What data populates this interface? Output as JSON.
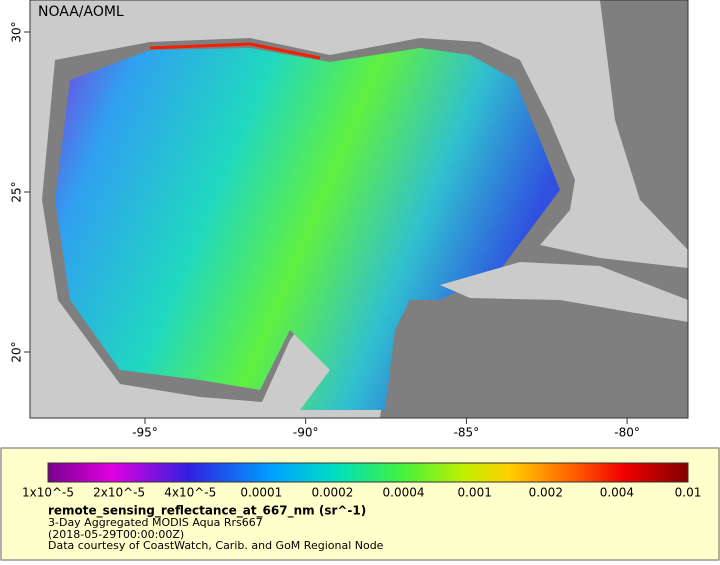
{
  "map": {
    "credit": "NOAA/AOML",
    "lat_ticks": [
      "30°",
      "25°",
      "20°"
    ],
    "lon_ticks": [
      "-95°",
      "-90°",
      "-85°",
      "-80°"
    ]
  },
  "legend": {
    "ticks": [
      "1x10^-5",
      "2x10^-5",
      "4x10^-5",
      "0.0001",
      "0.0002",
      "0.0004",
      "0.001",
      "0.002",
      "0.004",
      "0.01"
    ],
    "title": "remote_sensing_reflectance_at_667_nm (sr^-1)",
    "lines": [
      "3-Day Aggregated MODIS Aqua Rrs667",
      "(2018-05-29T00:00:00Z)",
      "Data courtesy of CoastWatch, Carib. and GoM Regional Node"
    ]
  }
}
